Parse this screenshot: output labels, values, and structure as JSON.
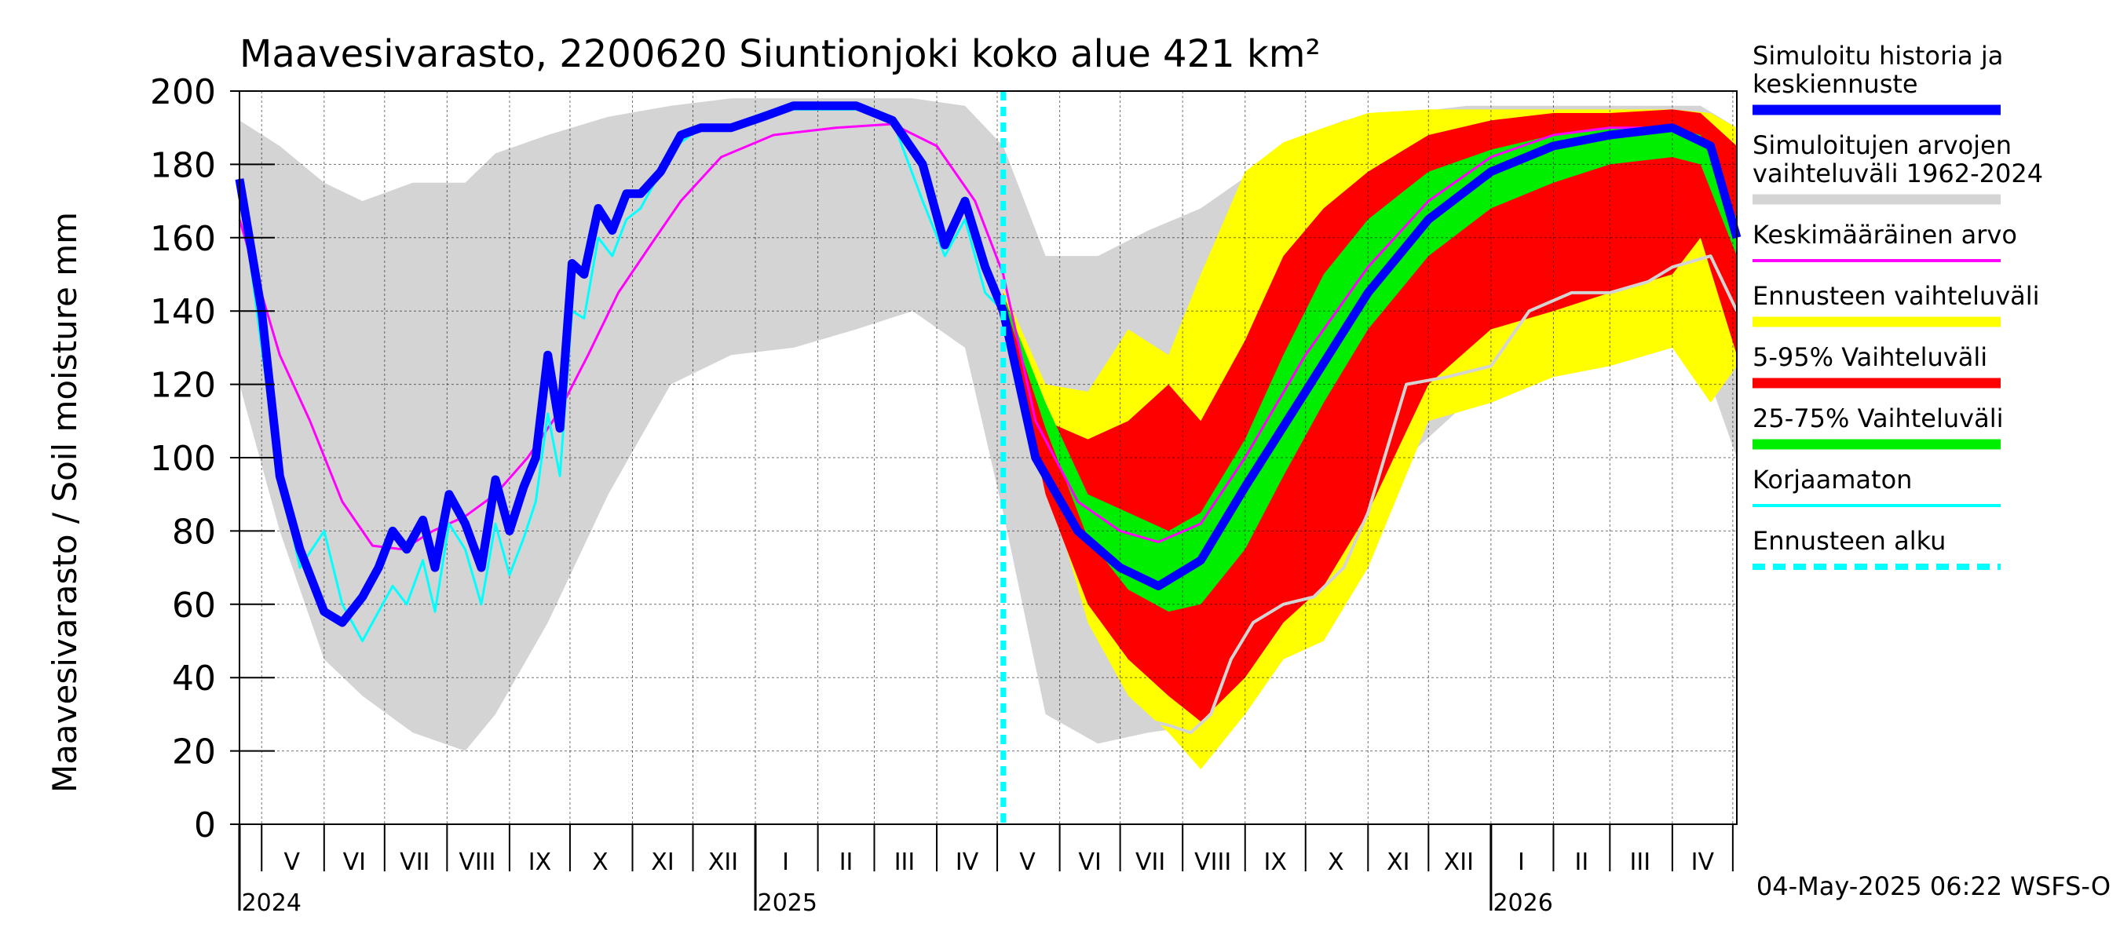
{
  "chart_data": {
    "type": "area",
    "title": "Maavesivarasto, 2200620 Siuntionjoki koko alue 421 km²",
    "ylabel": "Maavesivarasto / Soil moisture   mm",
    "xlabel": "",
    "ylim": [
      0,
      200
    ],
    "yticks": [
      0,
      20,
      40,
      60,
      80,
      100,
      120,
      140,
      160,
      180,
      200
    ],
    "grid": true,
    "legend_position": "right",
    "x_start": "2024-04-20",
    "x_end": "2026-05-03",
    "forecast_start": "2025-05-04",
    "year_boundaries": [
      "2025-01-01",
      "2026-01-01"
    ],
    "month_ticks": [
      "2024-05-01",
      "2024-06-01",
      "2024-07-01",
      "2024-08-01",
      "2024-09-01",
      "2024-10-01",
      "2024-11-01",
      "2024-12-01",
      "2025-01-01",
      "2025-02-01",
      "2025-03-01",
      "2025-04-01",
      "2025-05-01",
      "2025-06-01",
      "2025-07-01",
      "2025-08-01",
      "2025-09-01",
      "2025-10-01",
      "2025-11-01",
      "2025-12-01",
      "2026-01-01",
      "2026-02-01",
      "2026-03-01",
      "2026-04-01",
      "2026-05-01"
    ],
    "month_labels": [
      {
        "label": "V",
        "date": "2024-05-16"
      },
      {
        "label": "VI",
        "date": "2024-06-16"
      },
      {
        "label": "VII",
        "date": "2024-07-16"
      },
      {
        "label": "VIII",
        "date": "2024-08-16"
      },
      {
        "label": "IX",
        "date": "2024-09-16"
      },
      {
        "label": "X",
        "date": "2024-10-16"
      },
      {
        "label": "XI",
        "date": "2024-11-16"
      },
      {
        "label": "XII",
        "date": "2024-12-16"
      },
      {
        "label": "I",
        "date": "2025-01-16"
      },
      {
        "label": "II",
        "date": "2025-02-15"
      },
      {
        "label": "III",
        "date": "2025-03-16"
      },
      {
        "label": "IV",
        "date": "2025-04-16"
      },
      {
        "label": "V",
        "date": "2025-05-16"
      },
      {
        "label": "VI",
        "date": "2025-06-16"
      },
      {
        "label": "VII",
        "date": "2025-07-16"
      },
      {
        "label": "VIII",
        "date": "2025-08-16"
      },
      {
        "label": "IX",
        "date": "2025-09-16"
      },
      {
        "label": "X",
        "date": "2025-10-16"
      },
      {
        "label": "XI",
        "date": "2025-11-16"
      },
      {
        "label": "XII",
        "date": "2025-12-16"
      },
      {
        "label": "I",
        "date": "2026-01-16"
      },
      {
        "label": "II",
        "date": "2026-02-15"
      },
      {
        "label": "III",
        "date": "2026-03-16"
      },
      {
        "label": "IV",
        "date": "2026-04-16"
      }
    ],
    "year_labels": [
      {
        "label": "2024",
        "date": "2024-04-21"
      },
      {
        "label": "2025",
        "date": "2025-01-02"
      },
      {
        "label": "2026",
        "date": "2026-01-02"
      }
    ],
    "bands": [
      {
        "name": "Simuloitujen arvojen vaihteluväli 1962-2024",
        "color": "#d4d4d4",
        "x": [
          "2024-04-20",
          "2024-05-10",
          "2024-06-01",
          "2024-06-20",
          "2024-07-15",
          "2024-08-10",
          "2024-08-25",
          "2024-09-20",
          "2024-10-20",
          "2024-11-20",
          "2024-12-20",
          "2025-01-20",
          "2025-02-20",
          "2025-03-20",
          "2025-04-15",
          "2025-05-04",
          "2025-05-25",
          "2025-06-20",
          "2025-07-15",
          "2025-08-10",
          "2025-09-05",
          "2025-10-01",
          "2025-10-20",
          "2025-11-20",
          "2025-12-20",
          "2026-01-20",
          "2026-02-20",
          "2026-03-20",
          "2026-04-15",
          "2026-05-03"
        ],
        "lower": [
          120,
          80,
          45,
          35,
          25,
          20,
          30,
          55,
          90,
          120,
          128,
          130,
          135,
          140,
          130,
          85,
          30,
          22,
          25,
          27,
          40,
          60,
          80,
          100,
          115,
          125,
          130,
          135,
          128,
          100
        ],
        "upper": [
          192,
          185,
          175,
          170,
          175,
          175,
          183,
          188,
          193,
          196,
          198,
          198,
          198,
          198,
          196,
          185,
          155,
          155,
          162,
          168,
          178,
          188,
          192,
          194,
          196,
          196,
          196,
          196,
          196,
          190
        ]
      },
      {
        "name": "Ennusteen vaihteluväli",
        "color": "#ffff00",
        "x": [
          "2025-05-04",
          "2025-05-25",
          "2025-06-15",
          "2025-07-05",
          "2025-07-25",
          "2025-08-10",
          "2025-09-01",
          "2025-09-20",
          "2025-10-10",
          "2025-11-01",
          "2025-12-01",
          "2026-01-01",
          "2026-02-01",
          "2026-03-01",
          "2026-04-01",
          "2026-04-20",
          "2026-05-03"
        ],
        "lower": [
          142,
          95,
          55,
          35,
          25,
          15,
          30,
          45,
          50,
          70,
          110,
          115,
          122,
          125,
          130,
          115,
          125
        ],
        "upper": [
          146,
          120,
          118,
          135,
          128,
          150,
          178,
          186,
          190,
          194,
          195,
          195,
          195,
          195,
          195,
          194,
          190
        ]
      },
      {
        "name": "5-95% Vaihteluväli",
        "color": "#ff0000",
        "x": [
          "2025-05-04",
          "2025-05-25",
          "2025-06-15",
          "2025-07-05",
          "2025-07-25",
          "2025-08-10",
          "2025-09-01",
          "2025-09-20",
          "2025-10-10",
          "2025-11-01",
          "2025-12-01",
          "2026-01-01",
          "2026-02-01",
          "2026-03-01",
          "2026-04-01",
          "2026-04-15",
          "2026-05-03"
        ],
        "lower": [
          143,
          90,
          60,
          45,
          35,
          28,
          40,
          55,
          65,
          85,
          120,
          135,
          140,
          145,
          150,
          160,
          128
        ],
        "upper": [
          145,
          110,
          105,
          110,
          120,
          110,
          132,
          155,
          168,
          178,
          188,
          192,
          194,
          194,
          195,
          194,
          185
        ]
      },
      {
        "name": "25-75% Vaihteluväli",
        "color": "#00ee00",
        "x": [
          "2025-05-04",
          "2025-05-25",
          "2025-06-15",
          "2025-07-05",
          "2025-07-25",
          "2025-08-10",
          "2025-09-01",
          "2025-09-20",
          "2025-10-10",
          "2025-11-01",
          "2025-12-01",
          "2026-01-01",
          "2026-02-01",
          "2026-03-01",
          "2026-04-01",
          "2026-04-15",
          "2026-05-03"
        ],
        "lower": [
          143,
          108,
          78,
          64,
          58,
          60,
          75,
          95,
          115,
          135,
          155,
          168,
          175,
          180,
          182,
          180,
          155
        ],
        "upper": [
          144,
          115,
          90,
          85,
          80,
          85,
          105,
          128,
          150,
          165,
          178,
          184,
          188,
          190,
          190,
          188,
          165
        ]
      }
    ],
    "series": [
      {
        "name": "Simuloitu historia ja keskiennuste",
        "color": "#0000ff",
        "width": 5,
        "x": [
          "2024-04-20",
          "2024-05-01",
          "2024-05-10",
          "2024-05-20",
          "2024-06-01",
          "2024-06-10",
          "2024-06-20",
          "2024-06-28",
          "2024-07-05",
          "2024-07-12",
          "2024-07-20",
          "2024-07-26",
          "2024-08-02",
          "2024-08-10",
          "2024-08-18",
          "2024-08-25",
          "2024-09-01",
          "2024-09-08",
          "2024-09-14",
          "2024-09-20",
          "2024-09-26",
          "2024-10-02",
          "2024-10-08",
          "2024-10-15",
          "2024-10-22",
          "2024-10-29",
          "2024-11-05",
          "2024-11-15",
          "2024-11-25",
          "2024-12-05",
          "2024-12-20",
          "2025-01-05",
          "2025-01-20",
          "2025-02-05",
          "2025-02-20",
          "2025-03-10",
          "2025-03-25",
          "2025-04-05",
          "2025-04-15",
          "2025-04-25",
          "2025-05-04",
          "2025-05-20",
          "2025-06-10",
          "2025-07-01",
          "2025-07-20",
          "2025-08-10",
          "2025-09-01",
          "2025-10-01",
          "2025-11-01",
          "2025-12-01",
          "2026-01-01",
          "2026-02-01",
          "2026-03-01",
          "2026-04-01",
          "2026-04-20",
          "2026-05-03"
        ],
        "y": [
          176,
          140,
          95,
          75,
          58,
          55,
          62,
          70,
          80,
          75,
          83,
          70,
          90,
          82,
          70,
          94,
          80,
          92,
          100,
          128,
          108,
          153,
          150,
          168,
          162,
          172,
          172,
          178,
          188,
          190,
          190,
          193,
          196,
          196,
          196,
          192,
          180,
          158,
          170,
          152,
          140,
          100,
          80,
          70,
          65,
          72,
          92,
          118,
          145,
          165,
          178,
          185,
          188,
          190,
          185,
          160
        ]
      },
      {
        "name": "Keskimääräinen arvo",
        "color": "#ff00ff",
        "width": 3,
        "x": [
          "2024-04-20",
          "2024-05-10",
          "2024-05-25",
          "2024-06-10",
          "2024-06-25",
          "2024-07-10",
          "2024-07-25",
          "2024-08-10",
          "2024-08-25",
          "2024-09-10",
          "2024-09-25",
          "2024-10-10",
          "2024-10-25",
          "2024-11-10",
          "2024-11-25",
          "2024-12-15",
          "2025-01-10",
          "2025-02-10",
          "2025-03-10",
          "2025-04-01",
          "2025-04-20",
          "2025-05-04",
          "2025-05-20",
          "2025-06-10",
          "2025-07-01",
          "2025-07-20",
          "2025-08-10",
          "2025-09-01",
          "2025-10-01",
          "2025-11-01",
          "2025-12-01",
          "2026-01-01",
          "2026-02-01",
          "2026-03-01",
          "2026-04-01",
          "2026-04-20",
          "2026-05-03"
        ],
        "y": [
          165,
          128,
          110,
          88,
          76,
          75,
          80,
          84,
          90,
          100,
          112,
          128,
          145,
          158,
          170,
          182,
          188,
          190,
          191,
          185,
          170,
          150,
          110,
          88,
          80,
          77,
          82,
          100,
          128,
          152,
          170,
          182,
          188,
          190,
          190,
          185,
          160
        ]
      },
      {
        "name": "Korjaamaton",
        "color": "#00ffff",
        "width": 3,
        "x": [
          "2024-04-20",
          "2024-05-01",
          "2024-05-10",
          "2024-05-20",
          "2024-06-01",
          "2024-06-10",
          "2024-06-20",
          "2024-06-28",
          "2024-07-05",
          "2024-07-12",
          "2024-07-20",
          "2024-07-26",
          "2024-08-02",
          "2024-08-10",
          "2024-08-18",
          "2024-08-25",
          "2024-09-01",
          "2024-09-08",
          "2024-09-14",
          "2024-09-20",
          "2024-09-26",
          "2024-10-02",
          "2024-10-08",
          "2024-10-15",
          "2024-10-22",
          "2024-10-29",
          "2024-11-05",
          "2024-11-15",
          "2024-11-25",
          "2024-12-05",
          "2024-12-20",
          "2025-01-05",
          "2025-01-20",
          "2025-02-05",
          "2025-02-20",
          "2025-03-10",
          "2025-03-25",
          "2025-04-05",
          "2025-04-15",
          "2025-04-25",
          "2025-05-04"
        ],
        "y": [
          176,
          130,
          95,
          70,
          80,
          60,
          50,
          58,
          65,
          60,
          72,
          58,
          82,
          75,
          60,
          82,
          68,
          78,
          88,
          112,
          95,
          140,
          138,
          160,
          155,
          165,
          168,
          178,
          186,
          190,
          190,
          194,
          195,
          195,
          195,
          192,
          170,
          155,
          165,
          145,
          140
        ]
      },
      {
        "name": "Simuloitujen arvojen vaihteluväli 1962-2024 (mean line)",
        "color": "#d4d4d4",
        "width": 4,
        "hidden_legend": true,
        "x": [
          "2025-07-01",
          "2025-07-25",
          "2025-08-05",
          "2025-08-15",
          "2025-08-25",
          "2025-09-05",
          "2025-09-20",
          "2025-10-05",
          "2025-10-20",
          "2025-11-01",
          "2025-11-20",
          "2025-12-10",
          "2026-01-01",
          "2026-01-20",
          "2026-02-10",
          "2026-03-01",
          "2026-03-20",
          "2026-04-01",
          "2026-04-20",
          "2026-05-03"
        ],
        "y": [
          30,
          27,
          25,
          30,
          45,
          55,
          60,
          62,
          70,
          85,
          120,
          122,
          125,
          140,
          145,
          145,
          148,
          152,
          155,
          140
        ]
      }
    ],
    "legend": [
      {
        "label": "Simuloitu historia ja\nkeskiennuste",
        "color": "#0000ff",
        "style": "thick"
      },
      {
        "label": "Simuloitujen arvojen\nvaihteluväli 1962-2024",
        "color": "#d4d4d4",
        "style": "thick"
      },
      {
        "label": "Keskimääräinen arvo",
        "color": "#ff00ff",
        "style": "thin"
      },
      {
        "label": "Ennusteen vaihteluväli",
        "color": "#ffff00",
        "style": "thick"
      },
      {
        "label": "5-95% Vaihteluväli",
        "color": "#ff0000",
        "style": "thick"
      },
      {
        "label": "25-75% Vaihteluväli",
        "color": "#00ee00",
        "style": "thick"
      },
      {
        "label": "Korjaamaton",
        "color": "#00ffff",
        "style": "thin"
      },
      {
        "label": "Ennusteen alku",
        "color": "#00ffff",
        "style": "dashed"
      }
    ],
    "footer": "04-May-2025 06:22 WSFS-O"
  }
}
